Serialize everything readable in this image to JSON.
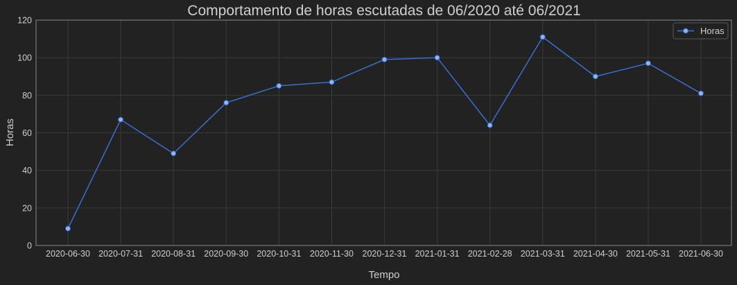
{
  "chart_data": {
    "type": "line",
    "title": "Comportamento de horas escutadas de 06/2020 até 06/2021",
    "xlabel": "Tempo",
    "ylabel": "Horas",
    "categories": [
      "2020-06-30",
      "2020-07-31",
      "2020-08-31",
      "2020-09-30",
      "2020-10-31",
      "2020-11-30",
      "2020-12-31",
      "2021-01-31",
      "2021-02-28",
      "2021-03-31",
      "2021-04-30",
      "2021-05-31",
      "2021-06-30"
    ],
    "series": [
      {
        "name": "Horas",
        "values": [
          9,
          67,
          49,
          76,
          85,
          87,
          99,
          100,
          64,
          111,
          90,
          97,
          81
        ]
      }
    ],
    "ylim": [
      0,
      120
    ],
    "yticks": [
      0,
      20,
      40,
      60,
      80,
      100,
      120
    ],
    "grid": true,
    "legend": "top-right",
    "colors": {
      "background": "#222222",
      "line": "#3a6fd0",
      "marker_fill": "#8fb6f0",
      "marker_edge": "#2d5fb8",
      "text": "#cfcfcf",
      "grid": "#3a3a3a",
      "frame": "#888888"
    }
  }
}
